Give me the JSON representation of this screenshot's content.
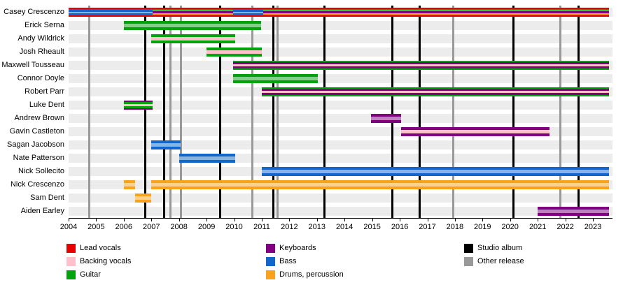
{
  "chart_data": {
    "type": "timeline",
    "title": "",
    "x_domain": [
      2004,
      2023.71
    ],
    "x_ticks": [
      2004,
      2005,
      2006,
      2007,
      2008,
      2009,
      2010,
      2011,
      2012,
      2013,
      2014,
      2015,
      2016,
      2017,
      2018,
      2019,
      2020,
      2021,
      2022,
      2023
    ],
    "timeline_end": 2023.58,
    "colors": {
      "lead_vocals": "#e60000",
      "backing_vocals": "#ffc0cb",
      "guitar": "#00a30c",
      "keyboards": "#800080",
      "bass": "#1366c9",
      "drums_percussion": "#faa21b",
      "studio_album": "#000000",
      "other_release": "#999999",
      "highlight": "rgba(255,255,255,0.5)",
      "row_band": "#ececec"
    },
    "rows": [
      {
        "name": "Casey Crescenzo",
        "bars": [
          {
            "start": 2004.0,
            "end": 2023.58,
            "layers": [
              [
                "lead_vocals",
                0
              ],
              [
                "guitar",
                2
              ],
              [
                "drums_percussion",
                3.5
              ],
              [
                "keyboards",
                5
              ]
            ]
          },
          {
            "start": 2004.0,
            "end": 2007.05,
            "layers": [
              [
                "bass",
                2
              ],
              [
                "highlight",
                5.5
              ]
            ]
          },
          {
            "start": 2009.95,
            "end": 2011.05,
            "layers": [
              [
                "bass",
                2
              ],
              [
                "highlight",
                5.5
              ]
            ]
          }
        ]
      },
      {
        "name": "Erick Serna",
        "bars": [
          {
            "start": 2006.0,
            "end": 2010.98,
            "layers": [
              [
                "guitar",
                0
              ],
              [
                "highlight",
                4
              ]
            ]
          }
        ]
      },
      {
        "name": "Andy Wildrick",
        "bars": [
          {
            "start": 2007.0,
            "end": 2010.05,
            "layers": [
              [
                "guitar",
                0
              ],
              [
                "backing_vocals",
                4
              ]
            ]
          }
        ]
      },
      {
        "name": "Josh Rheault",
        "bars": [
          {
            "start": 2009.0,
            "end": 2011.0,
            "layers": [
              [
                "guitar",
                0
              ],
              [
                "backing_vocals",
                4
              ]
            ]
          }
        ]
      },
      {
        "name": "Maxwell Tousseau",
        "bars": [
          {
            "start": 2009.95,
            "end": 2023.58,
            "layers": [
              [
                "guitar",
                0
              ],
              [
                "keyboards",
                2
              ],
              [
                "backing_vocals",
                5
              ]
            ]
          }
        ]
      },
      {
        "name": "Connor Doyle",
        "bars": [
          {
            "start": 2009.95,
            "end": 2013.03,
            "layers": [
              [
                "guitar",
                0
              ],
              [
                "highlight",
                4
              ]
            ]
          }
        ]
      },
      {
        "name": "Robert Parr",
        "bars": [
          {
            "start": 2011.0,
            "end": 2023.58,
            "layers": [
              [
                "guitar",
                0
              ],
              [
                "keyboards",
                2
              ],
              [
                "backing_vocals",
                5
              ]
            ]
          }
        ]
      },
      {
        "name": "Luke Dent",
        "bars": [
          {
            "start": 2006.0,
            "end": 2007.05,
            "layers": [
              [
                "keyboards",
                0
              ],
              [
                "guitar",
                2
              ],
              [
                "backing_vocals",
                5
              ]
            ]
          }
        ]
      },
      {
        "name": "Andrew Brown",
        "bars": [
          {
            "start": 2014.95,
            "end": 2016.05,
            "layers": [
              [
                "keyboards",
                0
              ],
              [
                "highlight",
                4
              ]
            ]
          }
        ]
      },
      {
        "name": "Gavin Castleton",
        "bars": [
          {
            "start": 2016.05,
            "end": 2021.43,
            "layers": [
              [
                "keyboards",
                0
              ],
              [
                "backing_vocals",
                4
              ]
            ]
          }
        ]
      },
      {
        "name": "Sagan Jacobson",
        "bars": [
          {
            "start": 2007.0,
            "end": 2008.05,
            "layers": [
              [
                "bass",
                0
              ],
              [
                "highlight",
                4
              ]
            ]
          }
        ]
      },
      {
        "name": "Nate Patterson",
        "bars": [
          {
            "start": 2008.0,
            "end": 2010.05,
            "layers": [
              [
                "bass",
                0
              ],
              [
                "highlight",
                4
              ]
            ]
          }
        ]
      },
      {
        "name": "Nick Sollecito",
        "bars": [
          {
            "start": 2011.0,
            "end": 2023.58,
            "layers": [
              [
                "bass",
                0
              ],
              [
                "highlight",
                4
              ]
            ]
          }
        ]
      },
      {
        "name": "Nick Crescenzo",
        "bars": [
          {
            "start": 2006.0,
            "end": 2006.4,
            "layers": [
              [
                "drums_percussion",
                0
              ],
              [
                "highlight",
                4
              ]
            ]
          },
          {
            "start": 2007.0,
            "end": 2023.58,
            "layers": [
              [
                "drums_percussion",
                0
              ],
              [
                "highlight",
                4
              ]
            ]
          }
        ]
      },
      {
        "name": "Sam Dent",
        "bars": [
          {
            "start": 2006.4,
            "end": 2007.0,
            "layers": [
              [
                "drums_percussion",
                0
              ],
              [
                "highlight",
                4
              ]
            ]
          }
        ]
      },
      {
        "name": "Aiden Earley",
        "bars": [
          {
            "start": 2021.0,
            "end": 2023.58,
            "layers": [
              [
                "keyboards",
                0
              ],
              [
                "highlight",
                4
              ]
            ]
          }
        ]
      }
    ],
    "release_lines": {
      "studio_album": [
        2006.77,
        2007.45,
        2009.5,
        2011.42,
        2013.28,
        2015.72,
        2016.73,
        2020.11,
        2022.49
      ],
      "other_release": [
        2004.74,
        2007.68,
        2008.08,
        2010.67,
        2011.56,
        2017.95,
        2021.81
      ]
    },
    "legend": [
      {
        "label": "Lead vocals",
        "color": "lead_vocals",
        "col": 0,
        "row": 0
      },
      {
        "label": "Backing vocals",
        "color": "backing_vocals",
        "col": 0,
        "row": 1
      },
      {
        "label": "Guitar",
        "color": "guitar",
        "col": 0,
        "row": 2
      },
      {
        "label": "Keyboards",
        "color": "keyboards",
        "col": 1,
        "row": 0
      },
      {
        "label": "Bass",
        "color": "bass",
        "col": 1,
        "row": 1
      },
      {
        "label": "Drums, percussion",
        "color": "drums_percussion",
        "col": 1,
        "row": 2
      },
      {
        "label": "Studio album",
        "color": "studio_album",
        "col": 2,
        "row": 0
      },
      {
        "label": "Other release",
        "color": "other_release",
        "col": 2,
        "row": 1
      }
    ]
  }
}
